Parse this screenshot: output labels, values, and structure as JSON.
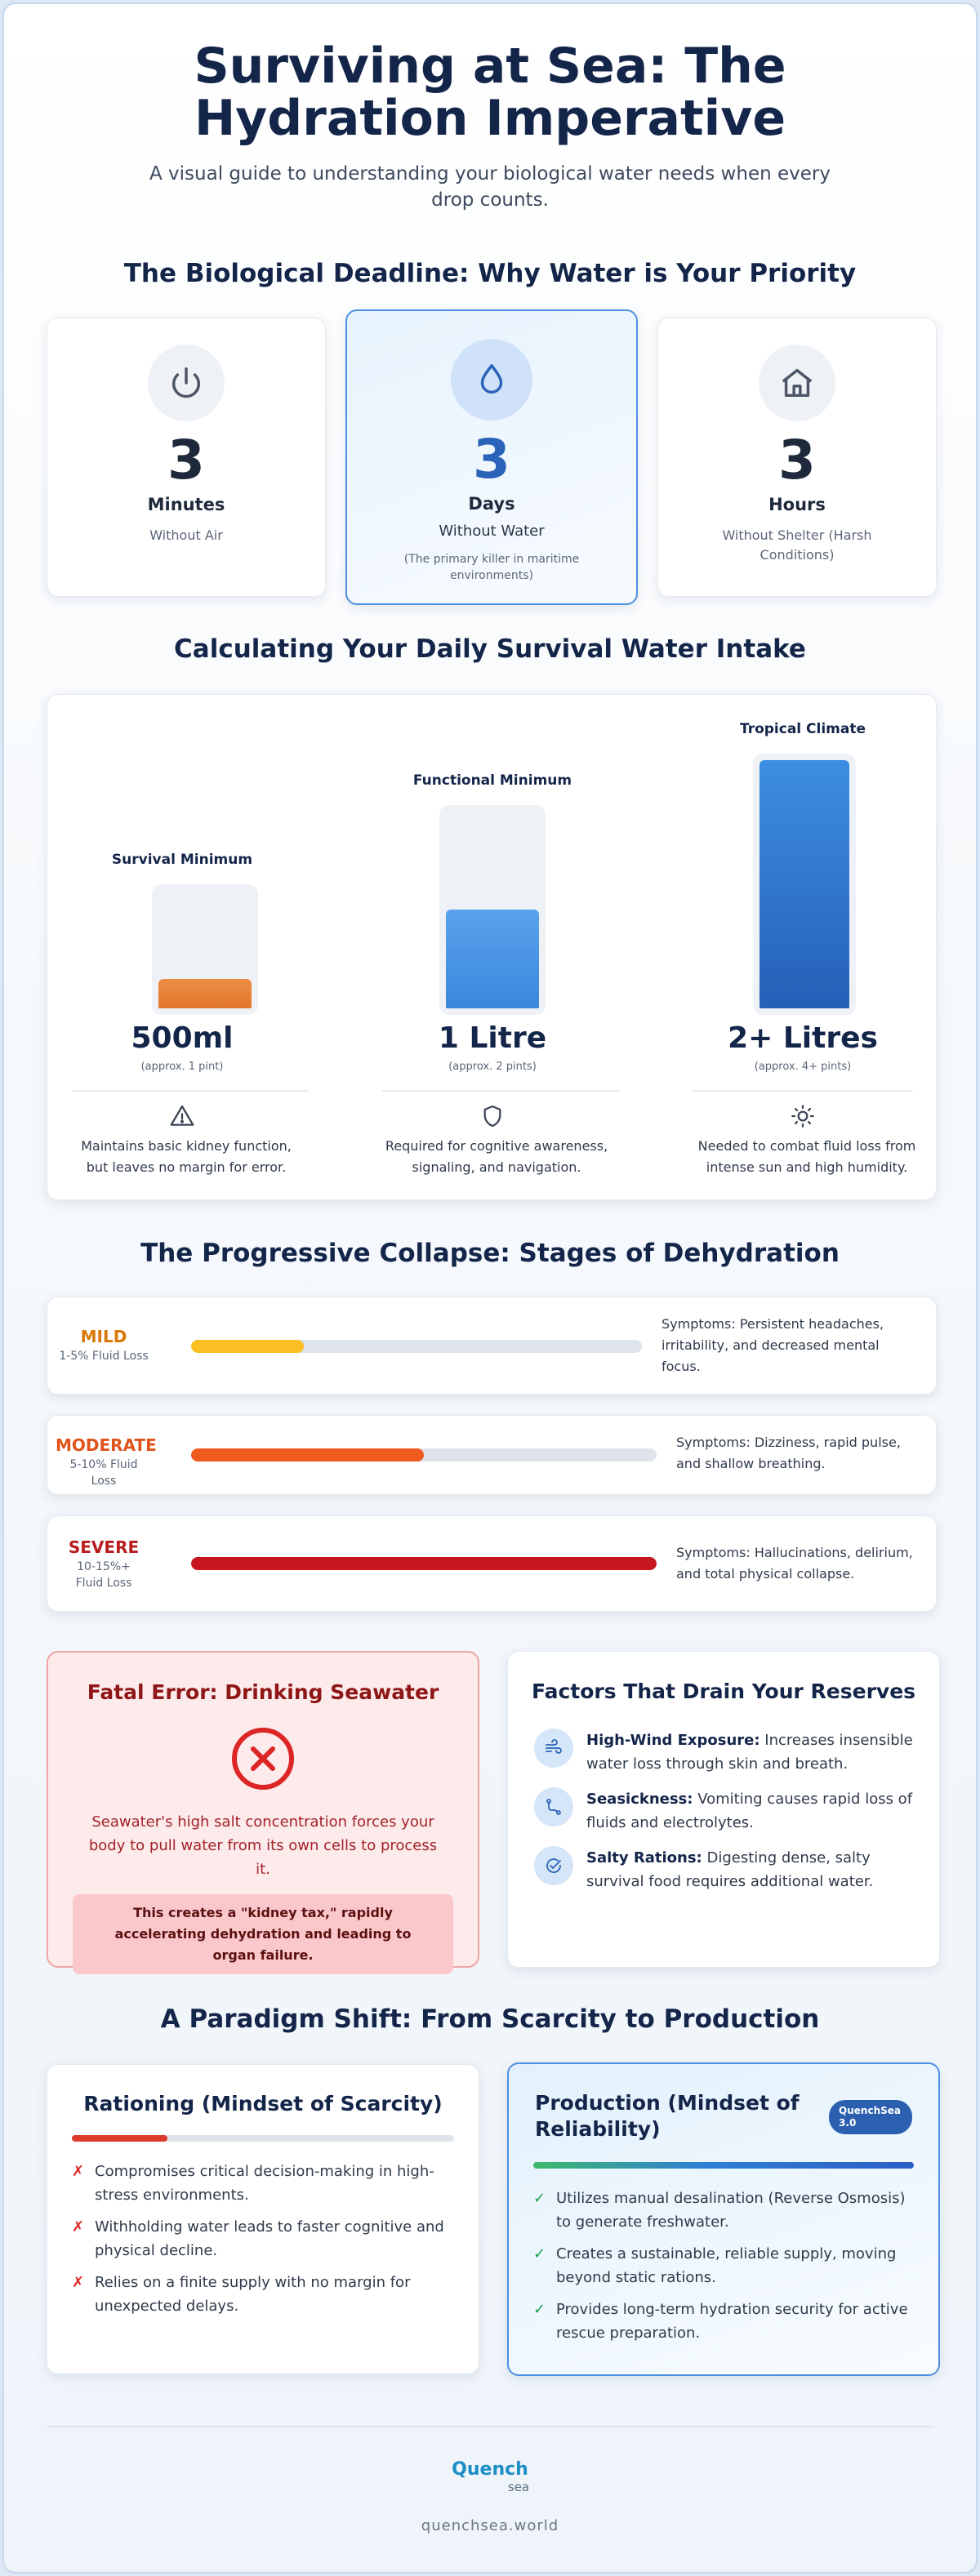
{
  "header": {
    "title": "Surviving at Sea: The Hydration Imperative",
    "subtitle": "A visual guide to understanding your biological water needs when every drop counts."
  },
  "deadline": {
    "title": "The Biological Deadline: Why Water is Your Priority",
    "cards": [
      {
        "number": "3",
        "unit": "Minutes",
        "label": "Without Air",
        "icon": "power-icon"
      },
      {
        "number": "3",
        "unit": "Days",
        "label": "Without Water",
        "note": "(The primary killer in maritime environments)",
        "icon": "water-drop-icon"
      },
      {
        "number": "3",
        "unit": "Hours",
        "label": "Without Shelter (Harsh Conditions)",
        "icon": "home-icon"
      }
    ]
  },
  "intake": {
    "title": "Calculating Your Daily Survival Water Intake",
    "columns": [
      {
        "label": "Survival Minimum",
        "amount": "500ml",
        "approx": "(approx. 1 pint)",
        "fill_fraction": 0.25,
        "icon": "warning-icon",
        "desc": "Maintains basic kidney function, but leaves no margin for error.",
        "color": "#e8843a"
      },
      {
        "label": "Functional Minimum",
        "amount": "1 Litre",
        "approx": "(approx. 2 pints)",
        "fill_fraction": 0.5,
        "icon": "shield-icon",
        "desc": "Required for cognitive awareness, signaling, and navigation.",
        "color": "#4b97e6"
      },
      {
        "label": "Tropical Climate",
        "amount": "2+ Litres",
        "approx": "(approx. 4+ pints)",
        "fill_fraction": 1.0,
        "icon": "sun-icon",
        "desc": "Needed to combat fluid loss from intense sun and high humidity.",
        "color": "#2d6fcb"
      }
    ]
  },
  "stages": {
    "title": "The Progressive Collapse: Stages of Dehydration",
    "items": [
      {
        "name": "MILD",
        "loss": "1-5% Fluid Loss",
        "level": 0.25,
        "symptoms": "Symptoms: Persistent headaches, irritability, and decreased mental focus.",
        "color": "#fbbf24",
        "name_color": "#d97706"
      },
      {
        "name": "MODERATE",
        "loss": "5-10% Fluid Loss",
        "level": 0.5,
        "symptoms": "Symptoms: Dizziness, rapid pulse, and shallow breathing.",
        "color": "#ef5a1e",
        "name_color": "#e0531a"
      },
      {
        "name": "SEVERE",
        "loss": "10-15%+ Fluid Loss",
        "level": 1.0,
        "symptoms": "Symptoms: Hallucinations, delirium, and total physical collapse.",
        "color": "#c8161e",
        "name_color": "#b91c1c"
      }
    ]
  },
  "seawater": {
    "title": "Fatal Error: Drinking Seawater",
    "icon": "error-x-icon",
    "text": "Seawater's high salt concentration forces your body to pull water from its own cells to process it.",
    "warning": "This creates a \"kidney tax,\" rapidly accelerating dehydration and leading to organ failure."
  },
  "factors": {
    "title": "Factors That Drain Your Reserves",
    "items": [
      {
        "name": "High-Wind Exposure:",
        "text": " Increases insensible water loss through skin and breath.",
        "icon": "wind-icon"
      },
      {
        "name": "Seasickness:",
        "text": " Vomiting causes rapid loss of fluids and electrolytes.",
        "icon": "route-icon"
      },
      {
        "name": "Salty Rations:",
        "text": " Digesting dense, salty survival food requires additional water.",
        "icon": "check-circle-icon"
      }
    ]
  },
  "paradigm": {
    "title": "A Paradigm Shift: From Scarcity to Production",
    "scarcity": {
      "title": "Rationing (Mindset of Scarcity)",
      "items": [
        "Compromises critical decision-making in high-stress environments.",
        "Withholding water leads to faster cognitive and physical decline.",
        "Relies on a finite supply with no margin for unexpected delays."
      ],
      "mark": "✗"
    },
    "production": {
      "title": "Production (Mindset of Reliability)",
      "badge_line1": "QuenchSea",
      "badge_line2": "3.0",
      "items": [
        "Utilizes manual desalination (Reverse Osmosis) to generate freshwater.",
        "Creates a sustainable, reliable supply, moving beyond static rations.",
        "Provides long-term hydration security for active rescue preparation."
      ],
      "mark": "✓"
    }
  },
  "footer": {
    "logo_top": "Quench",
    "logo_bottom": "sea",
    "site": "quenchsea.world"
  }
}
